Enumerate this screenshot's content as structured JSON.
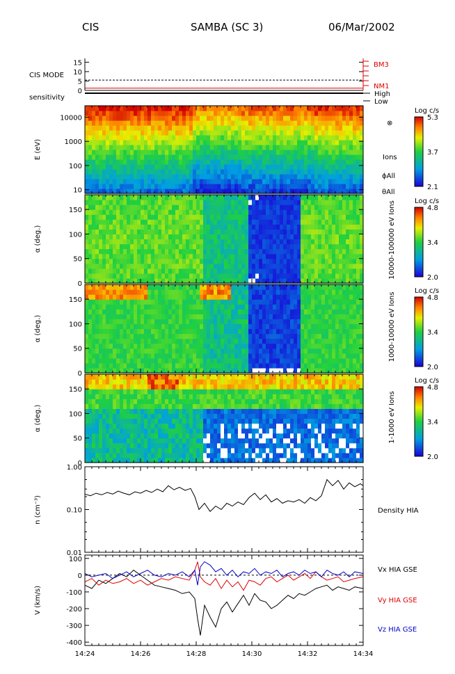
{
  "header": {
    "left": "CIS",
    "center": "SAMBA (SC 3)",
    "right": "06/Mar/2002"
  },
  "time_axis": {
    "ticks": [
      "14:24",
      "14:26",
      "14:28",
      "14:30",
      "14:32",
      "14:34"
    ],
    "range_minutes": [
      0,
      10
    ]
  },
  "colors": {
    "black": "#000000",
    "red": "#dd0000",
    "blue": "#0000cc"
  },
  "panels": {
    "mode": {
      "label": "CIS MODE",
      "yticks": [
        "15",
        "10",
        "5",
        "0"
      ],
      "markers": [
        "BM3",
        "NM1"
      ]
    },
    "sensitivity": {
      "label": "sensitivity",
      "levels": [
        "High",
        "Low"
      ]
    },
    "energy": {
      "ylabel": "E (eV)",
      "yticks": [
        "10000",
        "1000",
        "100",
        "10"
      ],
      "side_labels": [
        "⊗",
        "Ions",
        "ϕAll",
        "θAll"
      ],
      "colorbar": {
        "title": "Log c/s",
        "max": "5.3",
        "mid": "3.7",
        "min": "2.1"
      }
    },
    "pa_high": {
      "ylabel": "α (deg.)",
      "yticks": [
        "150",
        "100",
        "50",
        "0"
      ],
      "side_label": "10000-100000 eV Ions",
      "colorbar": {
        "title": "Log c/s",
        "max": "4.8",
        "mid": "3.4",
        "min": "2.0"
      }
    },
    "pa_mid": {
      "ylabel": "α (deg.)",
      "yticks": [
        "150",
        "100",
        "50",
        "0"
      ],
      "side_label": "1000-10000 eV Ions",
      "colorbar": {
        "title": "Log c/s",
        "max": "4.8",
        "mid": "3.4",
        "min": "2.0"
      }
    },
    "pa_low": {
      "ylabel": "α (deg.)",
      "yticks": [
        "150",
        "100",
        "50",
        "0"
      ],
      "side_label": "1-1000 eV Ions",
      "colorbar": {
        "title": "Log c/s",
        "max": "4.8",
        "mid": "3.4",
        "min": "2.0"
      }
    },
    "density": {
      "ylabel": "n (cm⁻³)",
      "yticks": [
        "1.00",
        "0.10",
        "0.01"
      ],
      "legend": "Density HIA"
    },
    "velocity": {
      "ylabel": "V (km/s)",
      "yticks": [
        "100",
        "0",
        "-100",
        "-200",
        "-300",
        "-400"
      ],
      "legend": [
        "Vx HIA GSE",
        "Vy HIA GSE",
        "Vz HIA GSE"
      ]
    }
  },
  "chart_data": [
    {
      "type": "line",
      "title": "CIS MODE",
      "x_unit": "minutes after 14:24",
      "ylim": [
        0,
        17
      ],
      "series": [
        {
          "name": "BM3",
          "values_const": 5.5,
          "style": "dashed"
        },
        {
          "name": "NM1",
          "values_const": 1.2,
          "style": "solid"
        }
      ]
    },
    {
      "type": "heatmap",
      "title": "E (eV)",
      "x": [
        0,
        10
      ],
      "ylim": [
        7,
        30000
      ],
      "yscale": "log",
      "description_rows_low_to_high_energy": [
        "blue",
        "green",
        "yellow",
        "orange",
        "red"
      ],
      "colorbar_range": [
        2.1,
        5.3
      ]
    },
    {
      "type": "heatmap",
      "title": "10000-100000 eV Ions",
      "ylim": [
        0,
        180
      ],
      "colorbar_range": [
        2.0,
        4.8
      ]
    },
    {
      "type": "heatmap",
      "title": "1000-10000 eV Ions",
      "ylim": [
        0,
        180
      ],
      "colorbar_range": [
        2.0,
        4.8
      ]
    },
    {
      "type": "heatmap",
      "title": "1-1000 eV Ions",
      "ylim": [
        0,
        180
      ],
      "colorbar_range": [
        2.0,
        4.8
      ]
    },
    {
      "type": "line",
      "title": "Density HIA",
      "yscale": "log",
      "ylim": [
        0.01,
        1.0
      ],
      "x": [
        0.0,
        0.2,
        0.4,
        0.6,
        0.8,
        1.0,
        1.2,
        1.4,
        1.6,
        1.8,
        2.0,
        2.2,
        2.4,
        2.6,
        2.8,
        3.0,
        3.2,
        3.4,
        3.6,
        3.8,
        3.95,
        4.1,
        4.3,
        4.5,
        4.7,
        4.9,
        5.1,
        5.3,
        5.5,
        5.7,
        5.9,
        6.1,
        6.3,
        6.5,
        6.7,
        6.9,
        7.1,
        7.3,
        7.5,
        7.7,
        7.9,
        8.1,
        8.3,
        8.5,
        8.7,
        8.9,
        9.1,
        9.3,
        9.5,
        9.7,
        9.9,
        10.0
      ],
      "values": [
        0.23,
        0.21,
        0.24,
        0.22,
        0.25,
        0.23,
        0.27,
        0.24,
        0.22,
        0.26,
        0.24,
        0.28,
        0.25,
        0.3,
        0.26,
        0.36,
        0.29,
        0.33,
        0.28,
        0.31,
        0.2,
        0.1,
        0.14,
        0.09,
        0.12,
        0.1,
        0.14,
        0.12,
        0.15,
        0.13,
        0.19,
        0.24,
        0.17,
        0.22,
        0.15,
        0.18,
        0.14,
        0.16,
        0.15,
        0.17,
        0.14,
        0.19,
        0.16,
        0.21,
        0.5,
        0.36,
        0.48,
        0.3,
        0.42,
        0.34,
        0.4,
        0.36
      ]
    },
    {
      "type": "line",
      "title": "V (km/s)",
      "ylim": [
        -420,
        120
      ],
      "x": [
        0.0,
        0.25,
        0.5,
        0.75,
        1.0,
        1.25,
        1.5,
        1.75,
        2.0,
        2.25,
        2.5,
        2.75,
        3.0,
        3.25,
        3.5,
        3.75,
        3.95,
        4.05,
        4.15,
        4.3,
        4.5,
        4.7,
        4.9,
        5.1,
        5.3,
        5.5,
        5.7,
        5.9,
        6.1,
        6.3,
        6.5,
        6.7,
        6.9,
        7.1,
        7.3,
        7.5,
        7.7,
        7.9,
        8.1,
        8.3,
        8.5,
        8.7,
        8.9,
        9.1,
        9.3,
        9.5,
        9.7,
        10.0
      ],
      "series": [
        {
          "name": "Vx HIA GSE",
          "color": "#000000",
          "values": [
            -60,
            -80,
            -30,
            -50,
            -20,
            10,
            -10,
            30,
            0,
            -30,
            -60,
            -70,
            -80,
            -90,
            -110,
            -100,
            -140,
            -260,
            -360,
            -180,
            -250,
            -310,
            -200,
            -160,
            -220,
            -170,
            -120,
            -180,
            -110,
            -150,
            -160,
            -200,
            -180,
            -150,
            -120,
            -140,
            -110,
            -120,
            -100,
            -80,
            -70,
            -60,
            -90,
            -70,
            -80,
            -90,
            -70,
            -80
          ]
        },
        {
          "name": "Vy HIA GSE",
          "color": "#dd0000",
          "values": [
            -40,
            -20,
            -60,
            -30,
            -50,
            -40,
            -20,
            -50,
            -30,
            -60,
            -40,
            -20,
            -30,
            -10,
            -20,
            -30,
            30,
            80,
            -10,
            -40,
            -60,
            -20,
            -80,
            -30,
            -70,
            -40,
            -90,
            -30,
            -40,
            -60,
            -20,
            -10,
            -40,
            -20,
            0,
            -30,
            -10,
            10,
            -20,
            20,
            -10,
            -30,
            -20,
            -10,
            -40,
            -30,
            -20,
            -10
          ]
        },
        {
          "name": "Vz HIA GSE",
          "color": "#0000cc",
          "values": [
            10,
            -10,
            0,
            10,
            -20,
            0,
            20,
            -10,
            10,
            30,
            0,
            -10,
            10,
            0,
            20,
            -10,
            30,
            -60,
            50,
            80,
            60,
            20,
            40,
            0,
            30,
            -10,
            20,
            10,
            40,
            0,
            20,
            10,
            30,
            -10,
            10,
            20,
            0,
            30,
            10,
            20,
            -10,
            30,
            10,
            0,
            20,
            -10,
            20,
            10
          ]
        }
      ]
    }
  ]
}
